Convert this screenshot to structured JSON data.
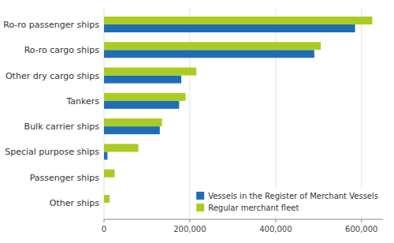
{
  "chart_data": {
    "type": "bar",
    "orientation": "horizontal",
    "categories": [
      "Other ships",
      "Passenger ships",
      "Special purpose ships",
      "Bulk carrier ships",
      "Tankers",
      "Other dry cargo ships",
      "Ro-ro cargo ships",
      "Ro-ro passenger ships"
    ],
    "series": [
      {
        "name": "Vessels in the Register of Merchant Vessels",
        "color": "#1F6EB5",
        "values": [
          0,
          0,
          8000,
          130000,
          175000,
          180000,
          490000,
          585000
        ]
      },
      {
        "name": "Regular merchant fleet",
        "color": "#AACC22",
        "values": [
          13000,
          25000,
          80000,
          135000,
          190000,
          215000,
          505000,
          625000
        ]
      }
    ],
    "xlim": [
      0,
      650000
    ],
    "xticks": [
      0,
      {
        "value": 200000,
        "label": "200,000"
      },
      {
        "value": 400000,
        "label": "400,000"
      },
      {
        "value": 600000,
        "label": "600,000"
      }
    ],
    "grid": true,
    "legend": "lower right"
  }
}
